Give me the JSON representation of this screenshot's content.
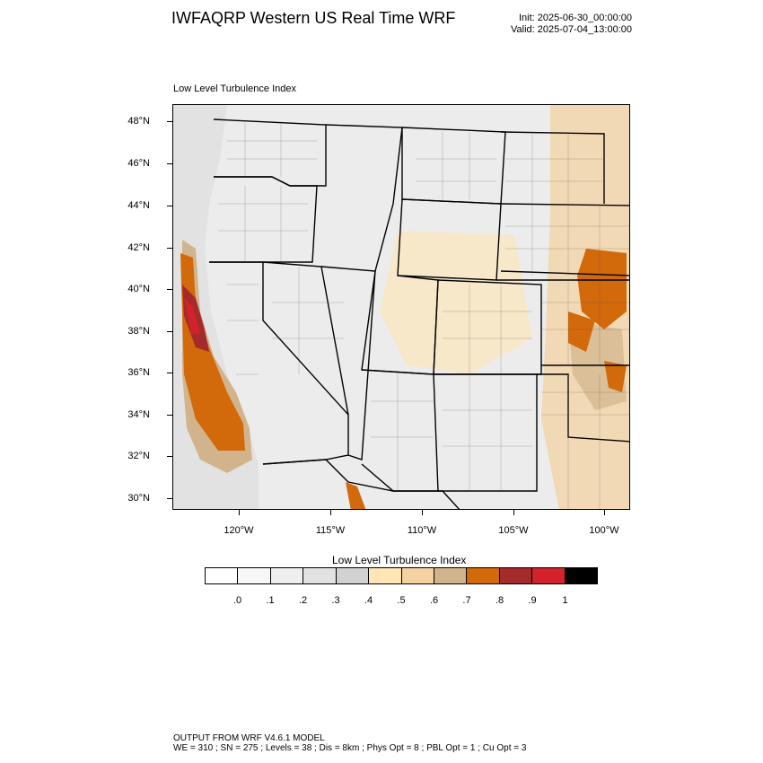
{
  "header": {
    "title": "IWFAQRP Western US Real Time WRF",
    "init": "Init: 2025-06-30_00:00:00",
    "valid": "Valid: 2025-07-04_13:00:00"
  },
  "field_label": "Low Level Turbulence Index",
  "map": {
    "lat_labels": [
      "48°N",
      "46°N",
      "44°N",
      "42°N",
      "40°N",
      "38°N",
      "36°N",
      "34°N",
      "32°N",
      "30°N"
    ],
    "lon_labels": [
      "120°W",
      "115°W",
      "110°W",
      "105°W",
      "100°W"
    ]
  },
  "legend": {
    "title": "Low Level Turbulence Index",
    "labels": [
      ".0",
      ".1",
      ".2",
      ".3",
      ".4",
      ".5",
      ".6",
      ".7",
      ".8",
      ".9",
      "1"
    ],
    "colors": [
      "#ffffff",
      "#f7f7f7",
      "#efefef",
      "#e2e2e2",
      "#d2d2d2",
      "#ffe6b4",
      "#f5d2a0",
      "#d2b48c",
      "#d2690a",
      "#a52a2a",
      "#d2232d",
      "#000000"
    ]
  },
  "footer": {
    "line1": "OUTPUT FROM WRF V4.6.1 MODEL",
    "line2": "WE = 310 ; SN = 275 ; Levels = 38 ; Dis = 8km ; Phys Opt = 8 ; PBL Opt = 1 ; Cu Opt = 3"
  }
}
